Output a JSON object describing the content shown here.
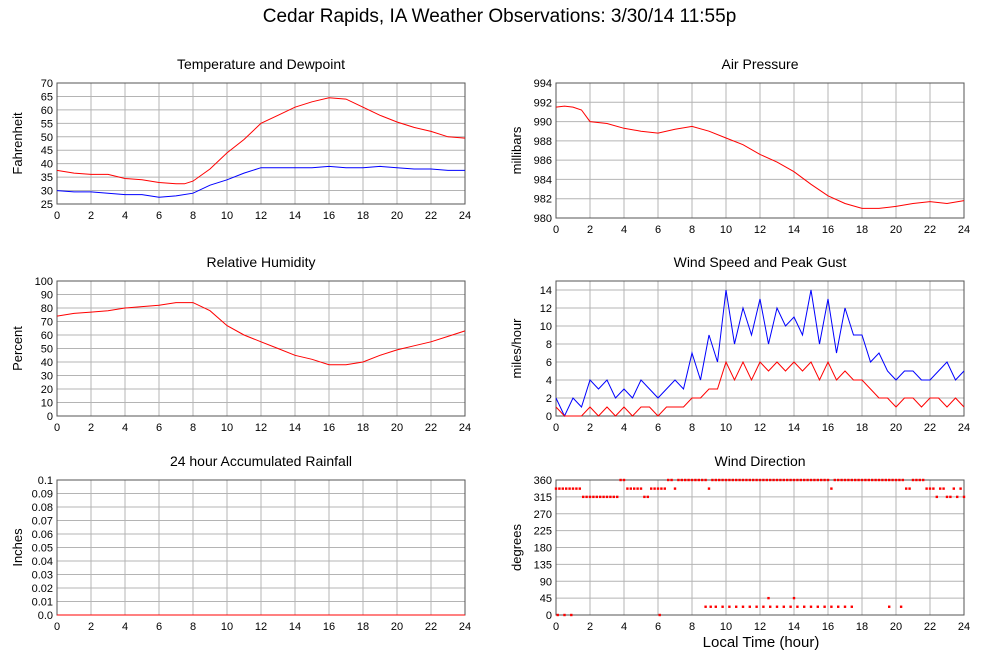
{
  "title": "Cedar Rapids, IA Weather Observations: 3/30/14 11:55p",
  "shared_xlabel": "Local Time (hour)",
  "x_ticks": [
    "0",
    "2",
    "4",
    "6",
    "8",
    "10",
    "12",
    "14",
    "16",
    "18",
    "20",
    "22",
    "24"
  ],
  "chart_data": [
    {
      "type": "line",
      "title": "Temperature and Dewpoint",
      "ylabel": "Fahrenheit",
      "xlim": [
        0,
        24
      ],
      "ylim": [
        25,
        70
      ],
      "y_ticks": [
        "25",
        "30",
        "35",
        "40",
        "45",
        "50",
        "55",
        "60",
        "65",
        "70"
      ],
      "grid": true,
      "series": [
        {
          "color": "#ff0000",
          "x": [
            0,
            1,
            2,
            3,
            4,
            5,
            6,
            7,
            7.5,
            8,
            9,
            10,
            11,
            12,
            13,
            14,
            15,
            16,
            17,
            18,
            19,
            20,
            21,
            22,
            23,
            24
          ],
          "y": [
            37.5,
            36.5,
            36,
            36,
            34.5,
            34,
            33,
            32.5,
            32.5,
            33.5,
            38,
            44,
            49,
            55,
            58,
            61,
            63,
            64.5,
            64,
            61,
            58,
            55.5,
            53.5,
            52,
            50,
            49.5
          ]
        },
        {
          "color": "#0000ff",
          "x": [
            0,
            1,
            2,
            3,
            4,
            5,
            6,
            7,
            8,
            9,
            10,
            11,
            12,
            13,
            14,
            15,
            16,
            17,
            18,
            19,
            20,
            21,
            22,
            23,
            24
          ],
          "y": [
            30,
            29.5,
            29.5,
            29,
            28.5,
            28.5,
            27.5,
            28,
            29,
            32,
            34,
            36.5,
            38.5,
            38.5,
            38.5,
            38.5,
            39,
            38.5,
            38.5,
            39,
            38.5,
            38,
            38,
            37.5,
            37.5
          ]
        }
      ]
    },
    {
      "type": "line",
      "title": "Air Pressure",
      "ylabel": "millibars",
      "xlim": [
        0,
        24
      ],
      "ylim": [
        980,
        994
      ],
      "y_ticks": [
        "980",
        "982",
        "984",
        "986",
        "988",
        "990",
        "992",
        "994"
      ],
      "grid": true,
      "series": [
        {
          "color": "#ff0000",
          "x": [
            0,
            0.5,
            1,
            1.5,
            2,
            3,
            4,
            5,
            6,
            7,
            8,
            9,
            10,
            11,
            12,
            13,
            14,
            15,
            16,
            17,
            18,
            19,
            20,
            21,
            22,
            23,
            24
          ],
          "y": [
            991.5,
            991.6,
            991.5,
            991.2,
            990.0,
            989.8,
            989.3,
            989.0,
            988.8,
            989.2,
            989.5,
            989.0,
            988.3,
            987.6,
            986.6,
            985.8,
            984.8,
            983.5,
            982.3,
            981.5,
            981.0,
            981.0,
            981.2,
            981.5,
            981.7,
            981.5,
            981.8
          ]
        }
      ]
    },
    {
      "type": "line",
      "title": "Relative Humidity",
      "ylabel": "Percent",
      "xlim": [
        0,
        24
      ],
      "ylim": [
        0,
        100
      ],
      "y_ticks": [
        "0",
        "10",
        "20",
        "30",
        "40",
        "50",
        "60",
        "70",
        "80",
        "90",
        "100"
      ],
      "grid": true,
      "series": [
        {
          "color": "#ff0000",
          "x": [
            0,
            1,
            2,
            3,
            4,
            5,
            6,
            7,
            8,
            9,
            10,
            11,
            12,
            13,
            14,
            15,
            16,
            17,
            18,
            19,
            20,
            21,
            22,
            23,
            24
          ],
          "y": [
            74,
            76,
            77,
            78,
            80,
            81,
            82,
            84,
            84,
            78,
            67,
            60,
            55,
            50,
            45,
            42,
            38,
            38,
            40,
            45,
            49,
            52,
            55,
            59,
            63
          ]
        }
      ]
    },
    {
      "type": "line",
      "title": "Wind Speed and Peak Gust",
      "ylabel": "miles/hour",
      "xlim": [
        0,
        24
      ],
      "ylim": [
        0,
        15
      ],
      "y_ticks": [
        "0",
        "2",
        "4",
        "6",
        "8",
        "10",
        "12",
        "14"
      ],
      "grid": true,
      "series": [
        {
          "color": "#0000ff",
          "x": [
            0,
            0.5,
            1,
            1.5,
            2,
            2.5,
            3,
            3.5,
            4,
            4.5,
            5,
            5.5,
            6,
            6.5,
            7,
            7.5,
            8,
            8.5,
            9,
            9.5,
            10,
            10.5,
            11,
            11.5,
            12,
            12.5,
            13,
            13.5,
            14,
            14.5,
            15,
            15.5,
            16,
            16.5,
            17,
            17.5,
            18,
            18.5,
            19,
            19.5,
            20,
            20.5,
            21,
            21.5,
            22,
            22.5,
            23,
            23.5,
            24
          ],
          "y": [
            2,
            0,
            2,
            1,
            4,
            3,
            4,
            2,
            3,
            2,
            4,
            3,
            2,
            3,
            4,
            3,
            7,
            4,
            9,
            6,
            14,
            8,
            12,
            9,
            13,
            8,
            12,
            10,
            11,
            9,
            14,
            8,
            13,
            7,
            12,
            9,
            9,
            6,
            7,
            5,
            4,
            5,
            5,
            4,
            4,
            5,
            6,
            4,
            5
          ]
        },
        {
          "color": "#ff0000",
          "x": [
            0,
            0.5,
            1,
            1.5,
            2,
            2.5,
            3,
            3.5,
            4,
            4.5,
            5,
            5.5,
            6,
            6.5,
            7,
            7.5,
            8,
            8.5,
            9,
            9.5,
            10,
            10.5,
            11,
            11.5,
            12,
            12.5,
            13,
            13.5,
            14,
            14.5,
            15,
            15.5,
            16,
            16.5,
            17,
            17.5,
            18,
            18.5,
            19,
            19.5,
            20,
            20.5,
            21,
            21.5,
            22,
            22.5,
            23,
            23.5,
            24
          ],
          "y": [
            1,
            0,
            0,
            0,
            1,
            0,
            1,
            0,
            1,
            0,
            1,
            1,
            0,
            1,
            1,
            1,
            2,
            2,
            3,
            3,
            6,
            4,
            6,
            4,
            6,
            5,
            6,
            5,
            6,
            5,
            6,
            4,
            6,
            4,
            5,
            4,
            4,
            3,
            2,
            2,
            1,
            2,
            2,
            1,
            2,
            2,
            1,
            2,
            1
          ]
        }
      ]
    },
    {
      "type": "line",
      "title": "24 hour Accumulated Rainfall",
      "ylabel": "Inches",
      "xlim": [
        0,
        24
      ],
      "ylim": [
        0,
        0.1
      ],
      "y_ticks": [
        "0.0",
        "0.01",
        "0.02",
        "0.03",
        "0.04",
        "0.05",
        "0.06",
        "0.07",
        "0.08",
        "0.09",
        "0.1"
      ],
      "grid": true,
      "series": [
        {
          "color": "#ff0000",
          "x": [
            0,
            24
          ],
          "y": [
            0,
            0
          ]
        }
      ]
    },
    {
      "type": "scatter",
      "title": "Wind Direction",
      "ylabel": "degrees",
      "xlim": [
        0,
        24
      ],
      "ylim": [
        0,
        360
      ],
      "y_ticks": [
        "0",
        "45",
        "90",
        "135",
        "180",
        "225",
        "270",
        "315",
        "360"
      ],
      "grid": true,
      "series": [
        {
          "color": "#ff0000",
          "x": [
            0,
            0.2,
            0.4,
            0.6,
            0.8,
            1.0,
            1.2,
            1.4,
            1.6,
            1.8,
            2.0,
            2.2,
            2.4,
            2.6,
            2.8,
            3.0,
            3.2,
            3.4,
            3.6,
            3.8,
            4.0,
            4.2,
            4.4,
            4.6,
            4.8,
            5.0,
            5.2,
            5.4,
            5.6,
            5.8,
            6.0,
            6.2,
            6.4,
            6.6,
            6.8,
            7.0,
            7.2,
            7.4,
            7.6,
            7.8,
            8.0,
            8.2,
            8.4,
            8.6,
            8.8,
            9.0,
            9.2,
            9.4,
            9.6,
            9.8,
            10.0,
            10.2,
            10.4,
            10.6,
            10.8,
            11.0,
            11.2,
            11.4,
            11.6,
            11.8,
            12.0,
            12.2,
            12.4,
            12.6,
            12.8,
            13.0,
            13.2,
            13.4,
            13.6,
            13.8,
            14.0,
            14.2,
            14.4,
            14.6,
            14.8,
            15.0,
            15.2,
            15.4,
            15.6,
            15.8,
            16.0,
            16.2,
            16.4,
            16.6,
            16.8,
            17.0,
            17.2,
            17.4,
            17.6,
            17.8,
            18.0,
            18.2,
            18.4,
            18.6,
            18.8,
            19.0,
            19.2,
            19.4,
            19.6,
            19.8,
            20.0,
            20.2,
            20.4,
            20.6,
            20.8,
            21.0,
            21.2,
            21.4,
            21.6,
            21.8,
            22.0,
            22.2,
            22.4,
            22.6,
            22.8,
            23.0,
            23.2,
            23.4,
            23.6,
            23.8,
            24.0,
            0.1,
            0.5,
            0.9,
            6.1,
            8.8,
            9.1,
            9.4,
            9.8,
            10.2,
            10.6,
            11.0,
            11.4,
            11.8,
            12.2,
            12.6,
            13.0,
            13.4,
            13.8,
            14.2,
            14.6,
            15.0,
            15.4,
            15.8,
            16.2,
            16.6,
            17.0,
            17.4,
            19.6,
            20.3,
            12.5,
            14.0
          ],
          "y": [
            337,
            337,
            337,
            337,
            337,
            337,
            337,
            337,
            315,
            315,
            315,
            315,
            315,
            315,
            315,
            315,
            315,
            315,
            315,
            360,
            360,
            337,
            337,
            337,
            337,
            337,
            315,
            315,
            337,
            337,
            337,
            337,
            337,
            360,
            360,
            337,
            360,
            360,
            360,
            360,
            360,
            360,
            360,
            360,
            360,
            337,
            360,
            360,
            360,
            360,
            360,
            360,
            360,
            360,
            360,
            360,
            360,
            360,
            360,
            360,
            360,
            360,
            360,
            360,
            360,
            360,
            360,
            360,
            360,
            360,
            360,
            360,
            360,
            360,
            360,
            360,
            360,
            360,
            360,
            360,
            360,
            337,
            360,
            360,
            360,
            360,
            360,
            360,
            360,
            360,
            360,
            360,
            360,
            360,
            360,
            360,
            360,
            360,
            360,
            360,
            360,
            360,
            360,
            337,
            337,
            360,
            360,
            360,
            360,
            337,
            337,
            337,
            315,
            337,
            337,
            315,
            315,
            337,
            315,
            337,
            315,
            0,
            0,
            0,
            0,
            22,
            22,
            22,
            22,
            22,
            22,
            22,
            22,
            22,
            22,
            22,
            22,
            22,
            22,
            22,
            22,
            22,
            22,
            22,
            22,
            22,
            22,
            22,
            22,
            22,
            45,
            45
          ]
        }
      ]
    }
  ]
}
